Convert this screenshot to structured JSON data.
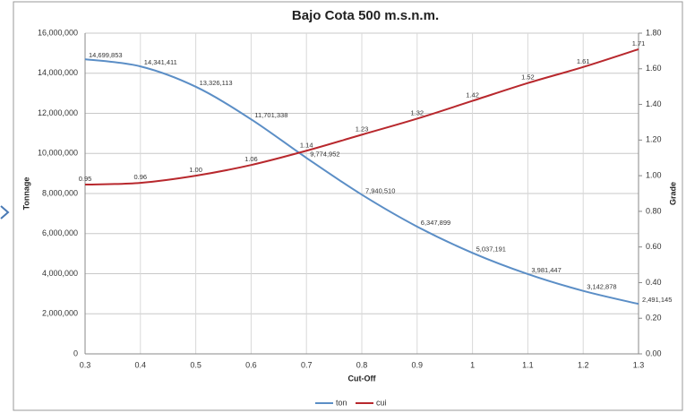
{
  "chart_data": {
    "type": "line",
    "title": "Bajo Cota 500 m.s.n.m.",
    "x_label": "Cut-Off",
    "y_label": "Tonnage",
    "y2_label": "Grade",
    "x": [
      0.3,
      0.4,
      0.5,
      0.6,
      0.7,
      0.8,
      0.9,
      1.0,
      1.1,
      1.2,
      1.3
    ],
    "xlim": [
      0.3,
      1.3
    ],
    "xticks": [
      0.3,
      0.4,
      0.5,
      0.6,
      0.7,
      0.8,
      0.9,
      1,
      1.1,
      1.2,
      1.3
    ],
    "ylim": [
      0,
      16000000
    ],
    "yticks": [
      0,
      {
        "value": 2000000,
        "label": "2,000,000"
      },
      {
        "value": 4000000,
        "label": "4,000,000"
      },
      {
        "value": 6000000,
        "label": "6,000,000"
      },
      {
        "value": 8000000,
        "label": "8,000,000"
      },
      {
        "value": 10000000,
        "label": "10,000,000"
      },
      {
        "value": 12000000,
        "label": "12,000,000"
      },
      {
        "value": 14000000,
        "label": "14,000,000"
      },
      {
        "value": 16000000,
        "label": "16,000,000"
      }
    ],
    "y2lim": [
      0,
      1.8
    ],
    "y2ticks": [
      {
        "value": 0,
        "label": "0.00"
      },
      {
        "value": 0.2,
        "label": "0.20"
      },
      {
        "value": 0.4,
        "label": "0.40"
      },
      {
        "value": 0.6,
        "label": "0.60"
      },
      {
        "value": 0.8,
        "label": "0.80"
      },
      {
        "value": 1.0,
        "label": "1.00"
      },
      {
        "value": 1.2,
        "label": "1.20"
      },
      {
        "value": 1.4,
        "label": "1.40"
      },
      {
        "value": 1.6,
        "label": "1.60"
      },
      {
        "value": 1.8,
        "label": "1.80"
      }
    ],
    "grid": true,
    "legend": "bottom",
    "series": [
      {
        "name": "ton",
        "color": "#5b8ec6",
        "values": [
          14699853,
          14341411,
          13326113,
          11701338,
          9774952,
          7940510,
          6347899,
          5037191,
          3981447,
          3142878,
          2491145
        ],
        "value_labels": [
          "14,699,853",
          "14,341,411",
          "13,326,113",
          "11,701,338",
          "9,774,952",
          "7,940,510",
          "6,347,899",
          "5,037,191",
          "3,981,447",
          "3,142,878",
          "2,491,145"
        ]
      },
      {
        "name": "cui",
        "color": "#b8282d",
        "axis": "y2",
        "values": [
          0.95,
          0.96,
          1.0,
          1.06,
          1.14,
          1.23,
          1.32,
          1.42,
          1.52,
          1.61,
          1.71
        ],
        "value_labels": [
          "0.95",
          "0.96",
          "1.00",
          "1.06",
          "1.14",
          "1.23",
          "1.32",
          "1.42",
          "1.52",
          "1.61",
          "1.71"
        ]
      }
    ]
  }
}
